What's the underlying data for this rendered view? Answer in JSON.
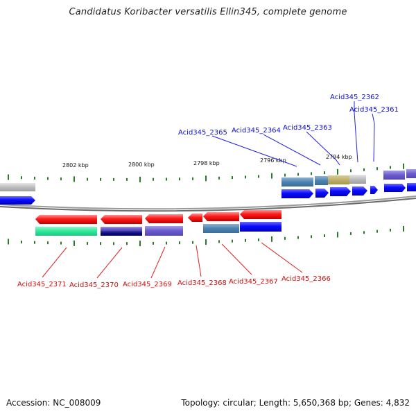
{
  "title": "Candidatus Koribacter versatilis Ellin345, complete genome",
  "footer": {
    "accession": "Accession: NC_008009",
    "topology": "Topology: circular; Length: 5,650,368 bp; Genes: 4,832"
  },
  "colors": {
    "plus_label": "#1010cc",
    "minus_label": "#cc1010",
    "tick": "#2a7a2a",
    "backbone": "#808080"
  },
  "scale_labels": [
    "2802 kbp",
    "2800 kbp",
    "2798 kbp",
    "2796 kbp",
    "2794 kbp"
  ],
  "plus_labels": [
    "Acid345_2362",
    "Acid345_2361",
    "Acid345_2365",
    "Acid345_2364",
    "Acid345_2363"
  ],
  "minus_labels": [
    "Acid345_2371",
    "Acid345_2370",
    "Acid345_2369",
    "Acid345_2368",
    "Acid345_2367",
    "Acid345_2366"
  ]
}
